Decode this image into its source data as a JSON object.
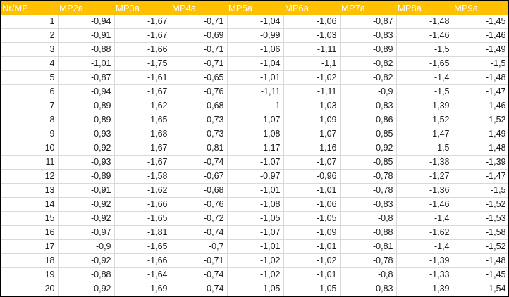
{
  "headers": [
    "Nr/MP",
    "MP2a",
    "MP3a",
    "MP4a",
    "MP5a",
    "MP6a",
    "MP7a",
    "MP8a",
    "MP9a"
  ],
  "rows": [
    [
      "1",
      "-0,94",
      "-1,67",
      "-0,71",
      "-1,04",
      "-1,06",
      "-0,87",
      "-1,48",
      "-1,45"
    ],
    [
      "2",
      "-0,91",
      "-1,67",
      "-0,69",
      "-0,99",
      "-1,03",
      "-0,83",
      "-1,46",
      "-1,46"
    ],
    [
      "3",
      "-0,88",
      "-1,66",
      "-0,71",
      "-1,06",
      "-1,11",
      "-0,89",
      "-1,5",
      "-1,49"
    ],
    [
      "4",
      "-1,01",
      "-1,75",
      "-0,71",
      "-1,04",
      "-1,1",
      "-0,82",
      "-1,65",
      "-1,5"
    ],
    [
      "5",
      "-0,87",
      "-1,61",
      "-0,65",
      "-1,01",
      "-1,02",
      "-0,82",
      "-1,4",
      "-1,48"
    ],
    [
      "6",
      "-0,94",
      "-1,67",
      "-0,76",
      "-1,11",
      "-1,11",
      "-0,9",
      "-1,5",
      "-1,47"
    ],
    [
      "7",
      "-0,89",
      "-1,62",
      "-0,68",
      "-1",
      "-1,03",
      "-0,83",
      "-1,39",
      "-1,46"
    ],
    [
      "8",
      "-0,89",
      "-1,65",
      "-0,73",
      "-1,07",
      "-1,09",
      "-0,86",
      "-1,52",
      "-1,52"
    ],
    [
      "9",
      "-0,93",
      "-1,68",
      "-0,73",
      "-1,08",
      "-1,07",
      "-0,85",
      "-1,47",
      "-1,49"
    ],
    [
      "10",
      "-0,92",
      "-1,67",
      "-0,81",
      "-1,17",
      "-1,16",
      "-0,92",
      "-1,5",
      "-1,48"
    ],
    [
      "11",
      "-0,93",
      "-1,67",
      "-0,74",
      "-1,07",
      "-1,07",
      "-0,85",
      "-1,38",
      "-1,39"
    ],
    [
      "12",
      "-0,89",
      "-1,58",
      "-0,67",
      "-0,97",
      "-0,96",
      "-0,78",
      "-1,27",
      "-1,47"
    ],
    [
      "13",
      "-0,91",
      "-1,62",
      "-0,68",
      "-1,01",
      "-1,01",
      "-0,78",
      "-1,36",
      "-1,5"
    ],
    [
      "14",
      "-0,92",
      "-1,66",
      "-0,76",
      "-1,08",
      "-1,06",
      "-0,83",
      "-1,46",
      "-1,52"
    ],
    [
      "15",
      "-0,92",
      "-1,65",
      "-0,72",
      "-1,05",
      "-1,05",
      "-0,8",
      "-1,4",
      "-1,53"
    ],
    [
      "16",
      "-0,97",
      "-1,81",
      "-0,74",
      "-1,07",
      "-1,09",
      "-0,88",
      "-1,62",
      "-1,58"
    ],
    [
      "17",
      "-0,9",
      "-1,65",
      "-0,7",
      "-1,01",
      "-1,01",
      "-0,81",
      "-1,4",
      "-1,52"
    ],
    [
      "18",
      "-0,92",
      "-1,66",
      "-0,71",
      "-1,02",
      "-1,02",
      "-0,78",
      "-1,39",
      "-1,48"
    ],
    [
      "19",
      "-0,88",
      "-1,64",
      "-0,74",
      "-1,02",
      "-1,01",
      "-0,8",
      "-1,33",
      "-1,45"
    ],
    [
      "20",
      "-0,92",
      "-1,69",
      "-0,74",
      "-1,05",
      "-1,05",
      "-0,83",
      "-1,39",
      "-1,54"
    ]
  ],
  "colors": {
    "header_background": "#ffc000",
    "header_text": "#ffffff",
    "gridline": "#d9d9d9"
  }
}
